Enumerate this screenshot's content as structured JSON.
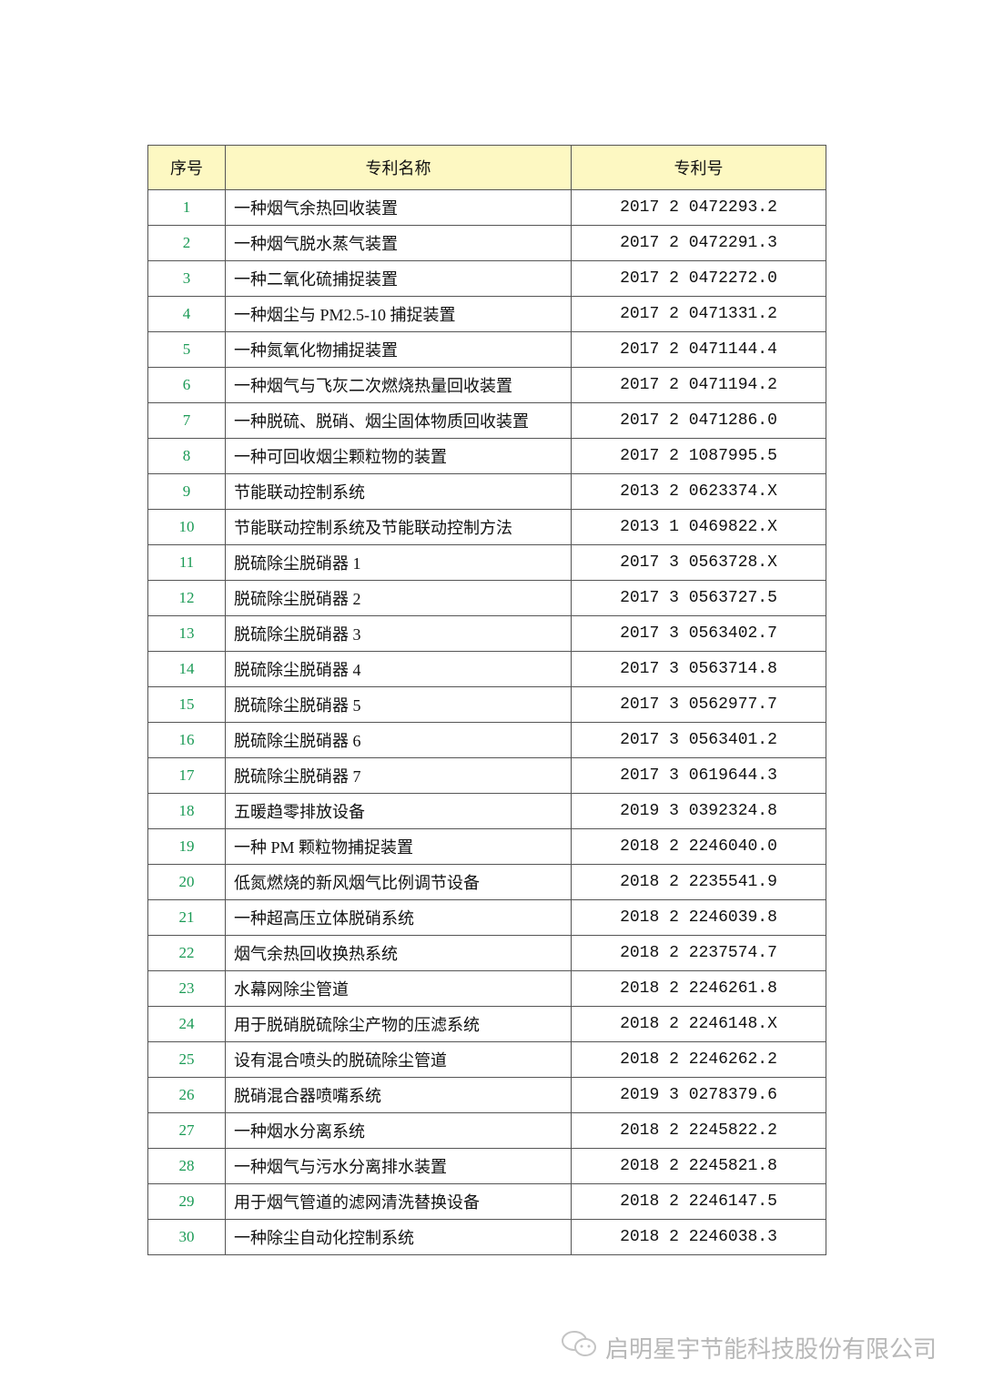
{
  "table": {
    "headers": [
      "序号",
      "专利名称",
      "专利号"
    ],
    "rows": [
      [
        "1",
        "一种烟气余热回收装置",
        "2017 2 0472293.2"
      ],
      [
        "2",
        "一种烟气脱水蒸气装置",
        "2017 2 0472291.3"
      ],
      [
        "3",
        "一种二氧化硫捕捉装置",
        "2017 2 0472272.0"
      ],
      [
        "4",
        "一种烟尘与 PM2.5-10 捕捉装置",
        "2017 2 0471331.2"
      ],
      [
        "5",
        "一种氮氧化物捕捉装置",
        "2017 2 0471144.4"
      ],
      [
        "6",
        "一种烟气与飞灰二次燃烧热量回收装置",
        "2017 2 0471194.2"
      ],
      [
        "7",
        "一种脱硫、脱硝、烟尘固体物质回收装置",
        "2017 2 0471286.0"
      ],
      [
        "8",
        "一种可回收烟尘颗粒物的装置",
        "2017 2 1087995.5"
      ],
      [
        "9",
        "节能联动控制系统",
        "2013 2 0623374.X"
      ],
      [
        "10",
        "节能联动控制系统及节能联动控制方法",
        "2013 1 0469822.X"
      ],
      [
        "11",
        "脱硫除尘脱硝器 1",
        "2017 3 0563728.X"
      ],
      [
        "12",
        "脱硫除尘脱硝器 2",
        "2017 3 0563727.5"
      ],
      [
        "13",
        "脱硫除尘脱硝器 3",
        "2017 3 0563402.7"
      ],
      [
        "14",
        "脱硫除尘脱硝器 4",
        "2017 3 0563714.8"
      ],
      [
        "15",
        "脱硫除尘脱硝器 5",
        "2017 3 0562977.7"
      ],
      [
        "16",
        "脱硫除尘脱硝器 6",
        "2017 3 0563401.2"
      ],
      [
        "17",
        "脱硫除尘脱硝器 7",
        "2017 3 0619644.3"
      ],
      [
        "18",
        "五暖趋零排放设备",
        "2019 3 0392324.8"
      ],
      [
        "19",
        "一种 PM 颗粒物捕捉装置",
        "2018 2 2246040.0"
      ],
      [
        "20",
        "低氮燃烧的新风烟气比例调节设备",
        "2018 2 2235541.9"
      ],
      [
        "21",
        "一种超高压立体脱硝系统",
        "2018 2 2246039.8"
      ],
      [
        "22",
        "烟气余热回收换热系统",
        "2018 2 2237574.7"
      ],
      [
        "23",
        "水幕网除尘管道",
        "2018 2 2246261.8"
      ],
      [
        "24",
        "用于脱硝脱硫除尘产物的压滤系统",
        "2018 2 2246148.X"
      ],
      [
        "25",
        "设有混合喷头的脱硫除尘管道",
        "2018 2 2246262.2"
      ],
      [
        "26",
        "脱硝混合器喷嘴系统",
        "2019 3 0278379.6"
      ],
      [
        "27",
        "一种烟水分离系统",
        "2018 2 2245822.2"
      ],
      [
        "28",
        "一种烟气与污水分离排水装置",
        "2018 2 2245821.8"
      ],
      [
        "29",
        "用于烟气管道的滤网清洗替换设备",
        "2018 2 2246147.5"
      ],
      [
        "30",
        "一种除尘自动化控制系统",
        "2018 2 2246038.3"
      ]
    ]
  },
  "watermark": {
    "icon": "wechat-icon",
    "text": "启明星宇节能科技股份有限公司"
  },
  "colors": {
    "header_bg": "#fdf8c2",
    "index_text": "#1a9a55"
  }
}
